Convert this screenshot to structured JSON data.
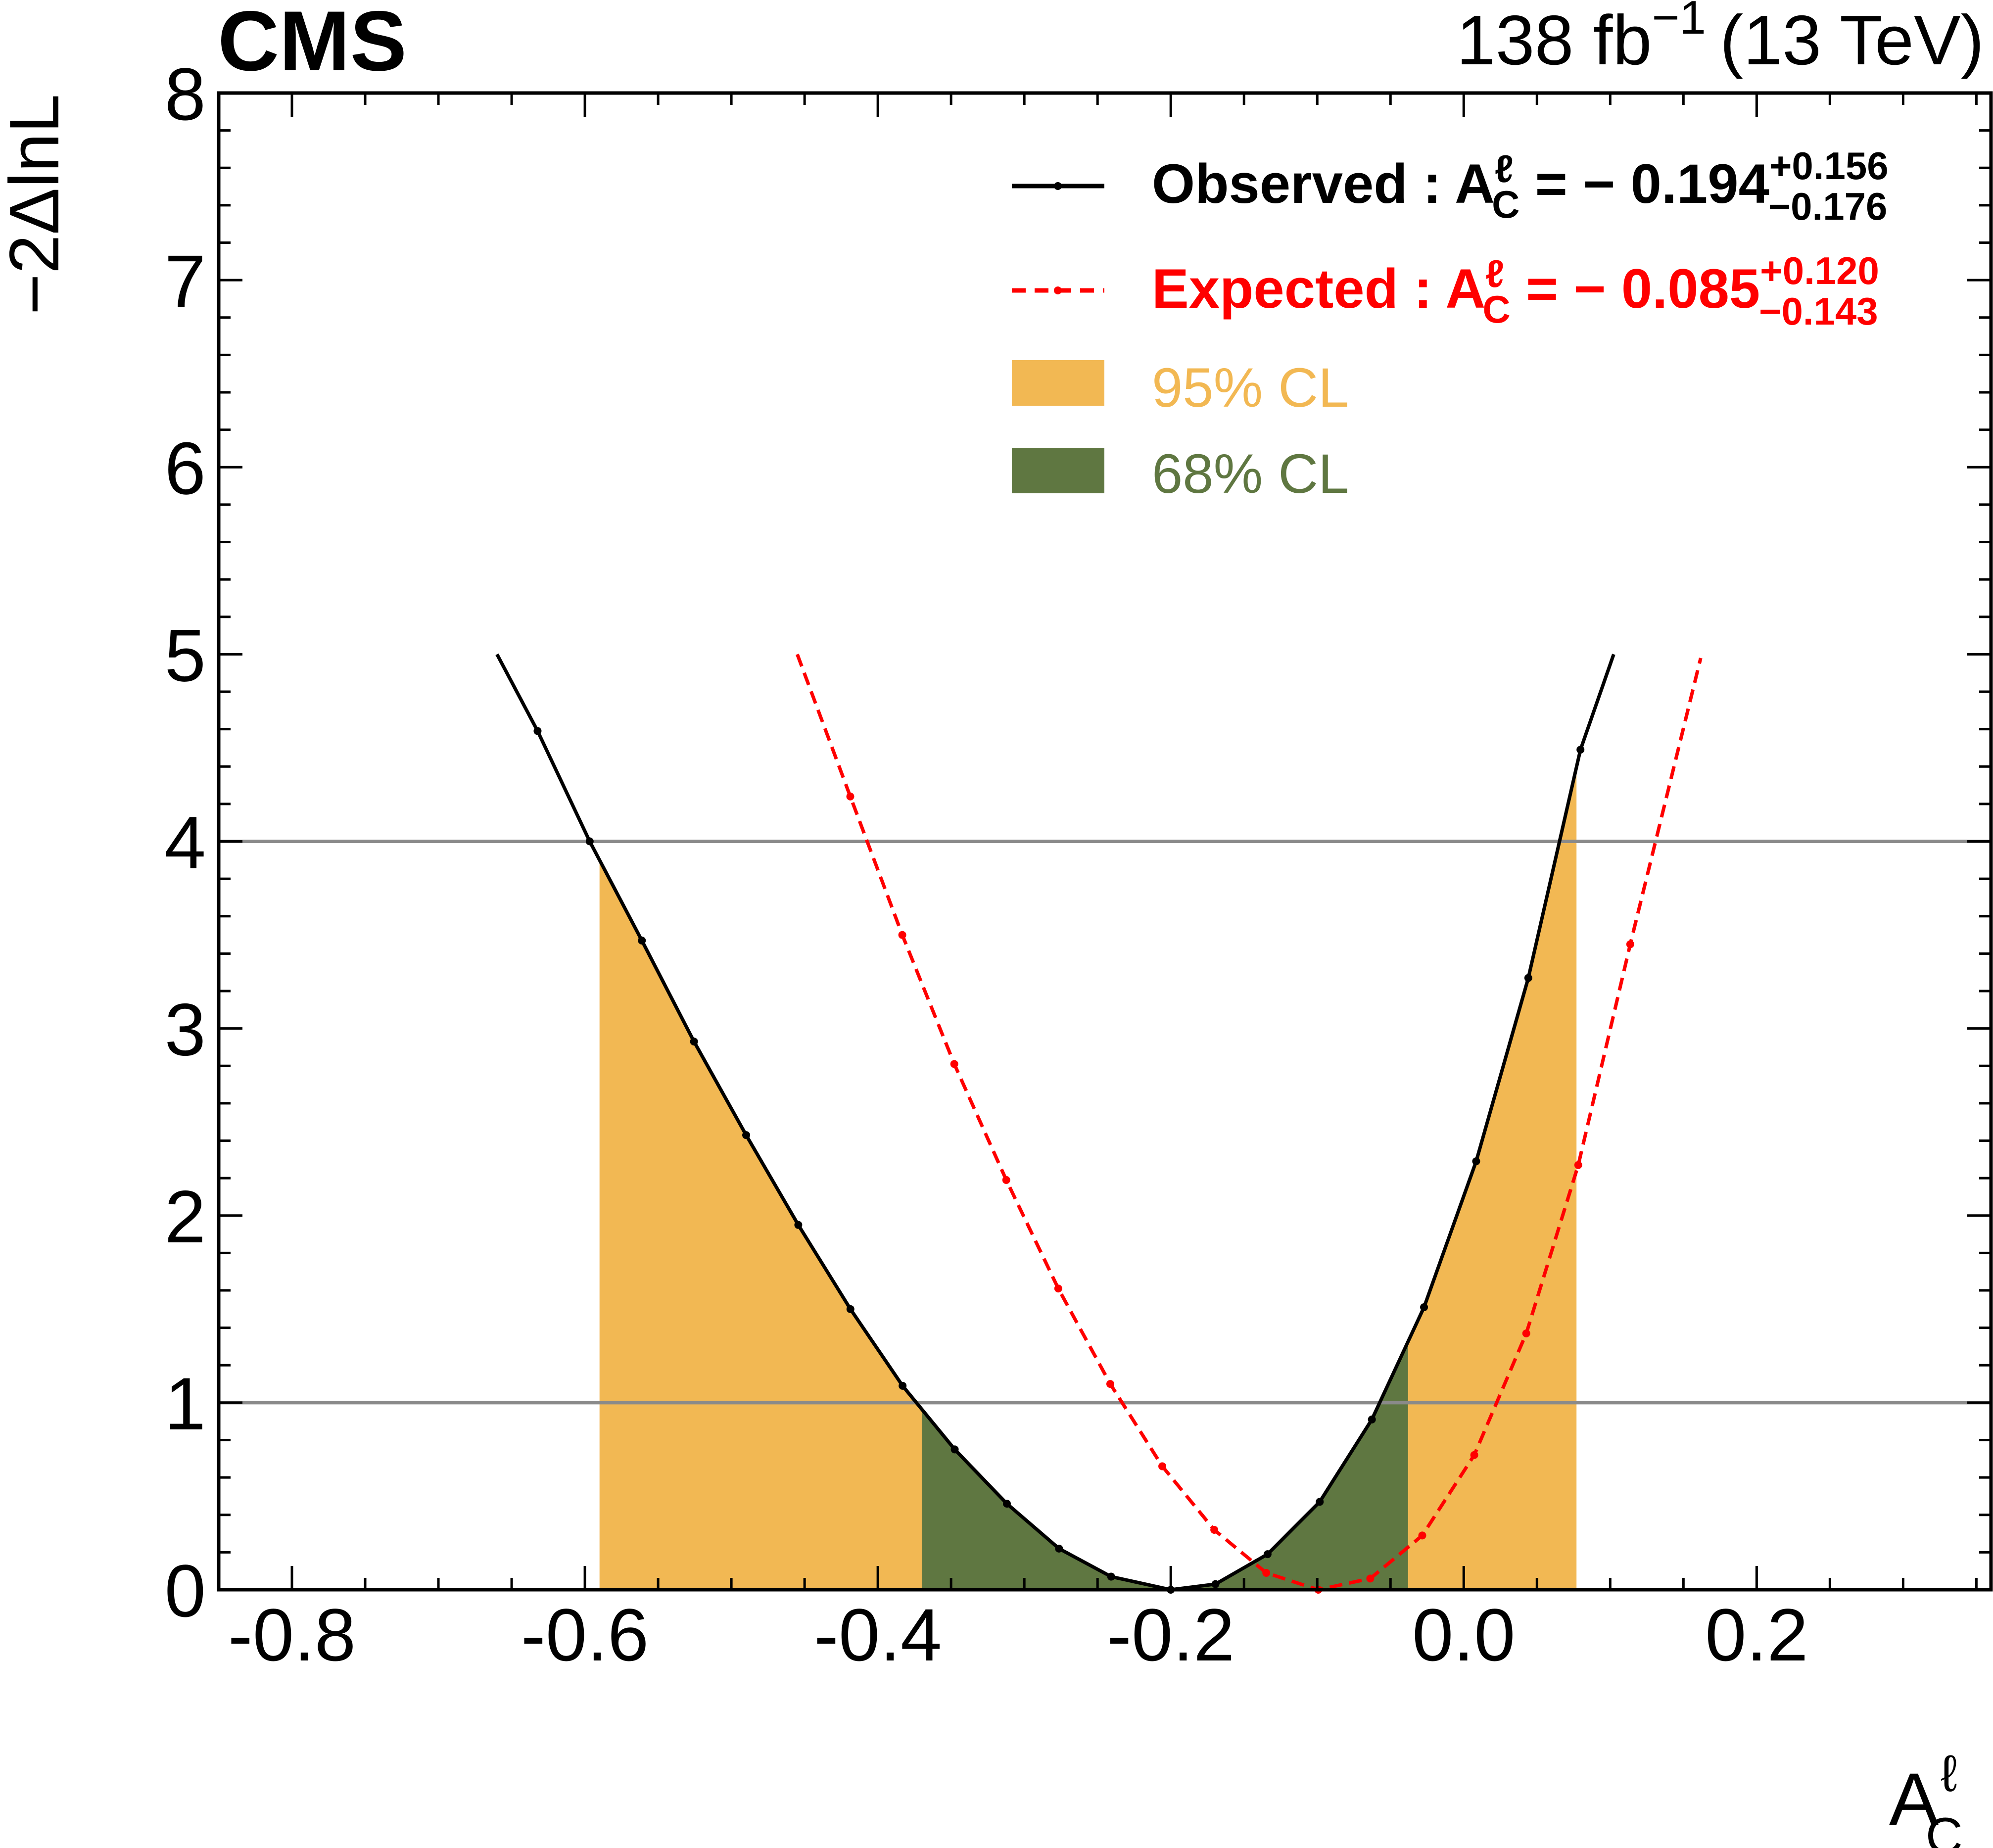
{
  "header": {
    "experiment": "CMS",
    "lumi": "138 fb",
    "lumi_exp": "−1",
    "energy": "(13 TeV)"
  },
  "legend": {
    "observed": {
      "label": "Observed : A",
      "sup": "ℓ",
      "sub": "C",
      "eq": " = − 0.194",
      "up": "+0.156",
      "down": "−0.176"
    },
    "expected": {
      "label": "Expected : A",
      "sup": "ℓ",
      "sub": "C",
      "eq": " = − 0.085",
      "up": "+0.120",
      "down": "−0.143"
    },
    "cl95": "95% CL",
    "cl68": "68% CL"
  },
  "colors": {
    "observed": "#000000",
    "expected": "#ff0000",
    "cl95": "#f2b853",
    "cl68": "#5f7741",
    "reference": "#8a8a8a"
  },
  "chart_data": {
    "type": "line",
    "xlabel": "A",
    "xlabel_sup": "ℓ",
    "xlabel_sub": "C",
    "ylabel": "−2ΔlnL",
    "xlim": [
      -0.85,
      0.36
    ],
    "ylim": [
      0,
      8
    ],
    "xticks": [
      -0.8,
      -0.6,
      -0.4,
      -0.2,
      0.0,
      0.2
    ],
    "xtick_labels": [
      "-0.8",
      "-0.6",
      "-0.4",
      "-0.2",
      "0.0",
      "0.2"
    ],
    "yticks": [
      0,
      1,
      2,
      3,
      4,
      5,
      6,
      7,
      8
    ],
    "ytick_labels": [
      "0",
      "1",
      "2",
      "3",
      "4",
      "5",
      "6",
      "7",
      "8"
    ],
    "reference_lines": [
      1,
      4
    ],
    "series": [
      {
        "name": "Observed",
        "style": "solid",
        "x": [
          -0.66,
          -0.6323,
          -0.5967,
          -0.5611,
          -0.5255,
          -0.4899,
          -0.4543,
          -0.4187,
          -0.3831,
          -0.3475,
          -0.3119,
          -0.2763,
          -0.2407,
          -0.2,
          -0.1695,
          -0.1339,
          -0.0983,
          -0.0627,
          -0.0271,
          0.0085,
          0.0441,
          0.0797,
          0.1024
        ],
        "y": [
          5.0,
          4.59,
          4.0,
          3.47,
          2.93,
          2.43,
          1.95,
          1.5,
          1.09,
          0.75,
          0.46,
          0.22,
          0.07,
          0.0,
          0.03,
          0.19,
          0.47,
          0.91,
          1.51,
          2.29,
          3.27,
          4.49,
          5.0
        ]
      },
      {
        "name": "Expected",
        "style": "dashed",
        "x": [
          -0.455,
          -0.4188,
          -0.3833,
          -0.3478,
          -0.3123,
          -0.2768,
          -0.2413,
          -0.2058,
          -0.1703,
          -0.1348,
          -0.0993,
          -0.0638,
          -0.0283,
          0.0072,
          0.0427,
          0.0782,
          0.1137,
          0.1618
        ],
        "y": [
          5.0,
          4.24,
          3.5,
          2.81,
          2.19,
          1.61,
          1.1,
          0.66,
          0.32,
          0.09,
          0.0,
          0.06,
          0.29,
          0.72,
          1.37,
          2.27,
          3.45,
          4.98
        ]
      }
    ],
    "bands": [
      {
        "name": "95% CL",
        "from": -0.59,
        "to": 0.077
      },
      {
        "name": "68% CL",
        "from": -0.37,
        "to": -0.038
      }
    ]
  }
}
